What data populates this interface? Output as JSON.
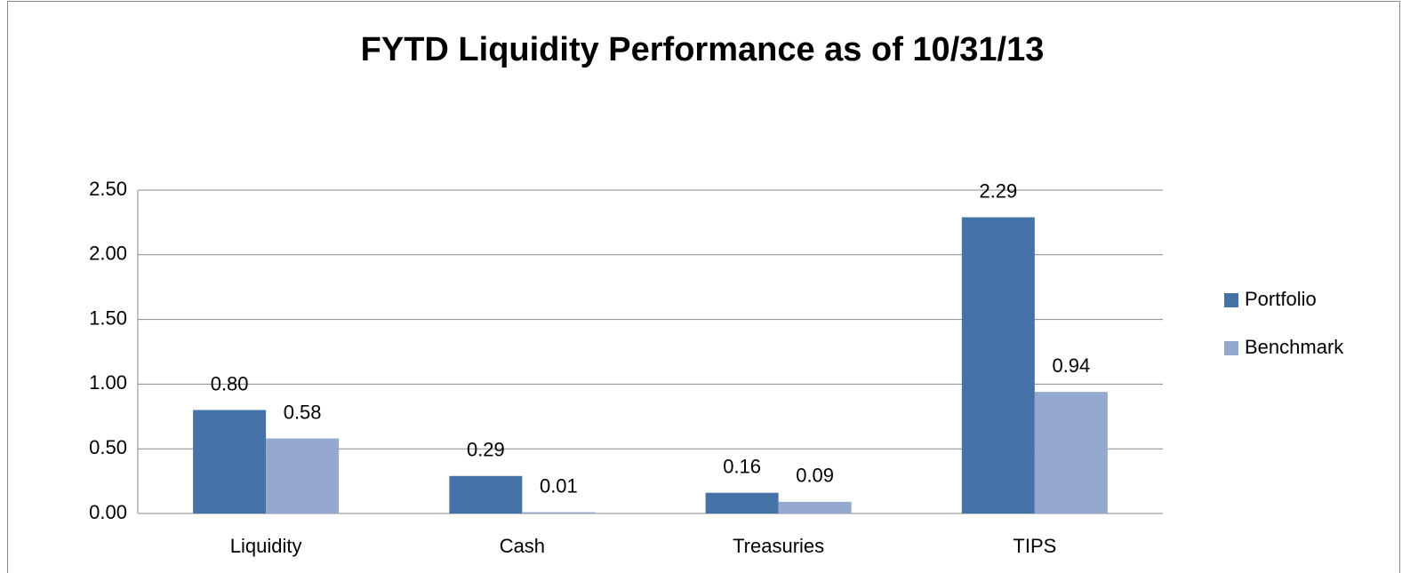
{
  "chart_data": {
    "type": "bar",
    "title": "FYTD Liquidity Performance as of 10/31/13",
    "categories": [
      "Liquidity",
      "Cash",
      "Treasuries",
      "TIPS"
    ],
    "series": [
      {
        "name": "Portfolio",
        "color": "#4572a7",
        "values": [
          0.8,
          0.29,
          0.16,
          2.29
        ],
        "value_labels": [
          "0.80",
          "0.29",
          "0.16",
          "2.29"
        ]
      },
      {
        "name": "Benchmark",
        "color": "#95a9d0",
        "values": [
          0.58,
          0.01,
          0.09,
          0.94
        ],
        "value_labels": [
          "0.58",
          "0.01",
          "0.09",
          "0.94"
        ]
      }
    ],
    "ylim": [
      0,
      2.5
    ],
    "yticks": [
      {
        "value": 0,
        "label": "0.00"
      },
      {
        "value": 0.5,
        "label": "0.50"
      },
      {
        "value": 1,
        "label": "1.00"
      },
      {
        "value": 1.5,
        "label": "1.50"
      },
      {
        "value": 2,
        "label": "2.00"
      },
      {
        "value": 2.5,
        "label": "2.50"
      }
    ],
    "grid": true,
    "legend": "right"
  }
}
